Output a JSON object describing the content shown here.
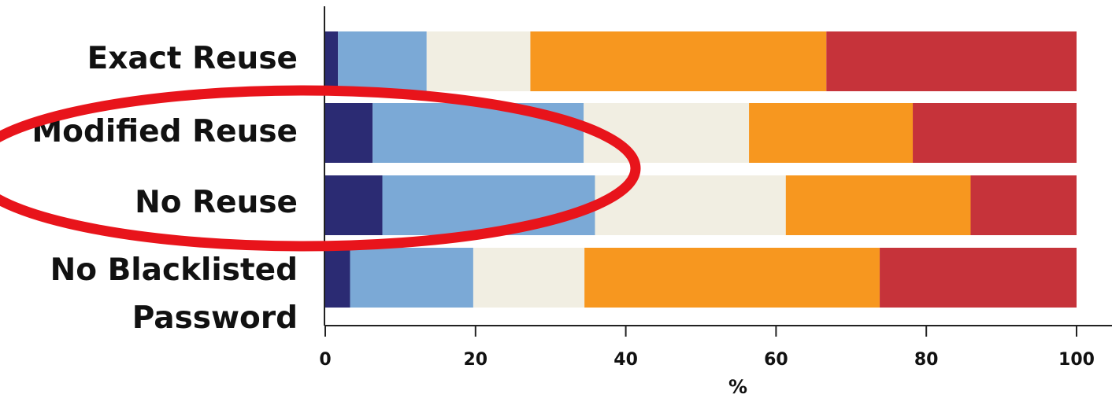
{
  "chart_data": {
    "type": "bar",
    "orientation": "horizontal",
    "stacked": true,
    "categories": [
      [
        "Exact Reuse"
      ],
      [
        "Modified Reuse"
      ],
      [
        "No Reuse"
      ],
      [
        "No Blacklisted",
        "Password"
      ]
    ],
    "series": [
      {
        "color": "#2b2b73",
        "values": [
          1.7,
          6.3,
          7.6,
          3.3
        ]
      },
      {
        "color": "#7ba9d6",
        "values": [
          11.8,
          28.1,
          28.3,
          16.4
        ]
      },
      {
        "color": "#f1eee2",
        "values": [
          13.8,
          22.0,
          25.4,
          14.8
        ]
      },
      {
        "color": "#f7971f",
        "values": [
          39.4,
          21.8,
          24.6,
          39.3
        ]
      },
      {
        "color": "#c6333a",
        "values": [
          33.3,
          21.8,
          14.1,
          26.2
        ]
      }
    ],
    "xlabel": "%",
    "xlim": [
      0,
      100
    ],
    "xticks": [
      0,
      20,
      40,
      60,
      80,
      100
    ],
    "grid": false,
    "annotations": [
      {
        "type": "ellipse",
        "color": "#e8141b",
        "encloses": [
          "Modified Reuse",
          "No Reuse"
        ]
      }
    ]
  }
}
